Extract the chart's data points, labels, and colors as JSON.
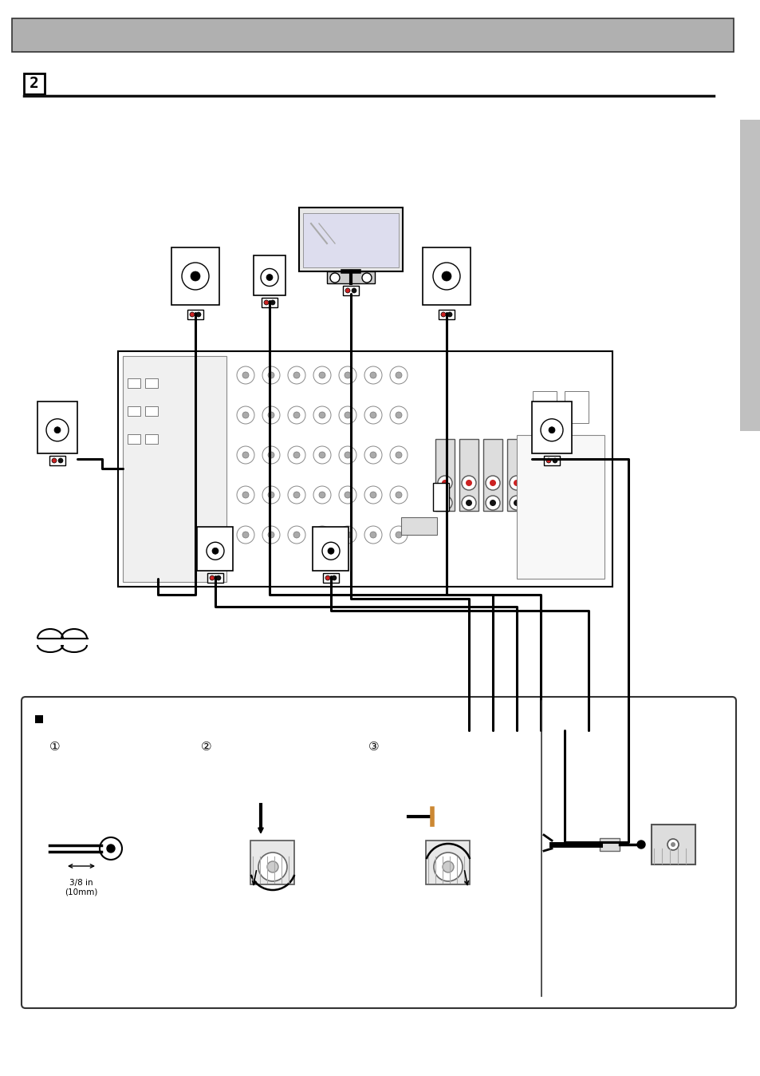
{
  "page_bg": "#ffffff",
  "header_bar_color": "#b0b0b0",
  "header_bar_border": "#333333",
  "step_number": "2",
  "divider_color": "#111111",
  "right_tab_color": "#c0c0c0",
  "bottom_box_bg": "#ffffff",
  "bottom_box_border": "#333333",
  "receiver_bg": "#ffffff",
  "receiver_border": "#333333",
  "wire_color": "#111111",
  "speaker_bg": "#ffffff",
  "speaker_border": "#111111",
  "terminal_red": "#cc2222",
  "terminal_black": "#111111"
}
